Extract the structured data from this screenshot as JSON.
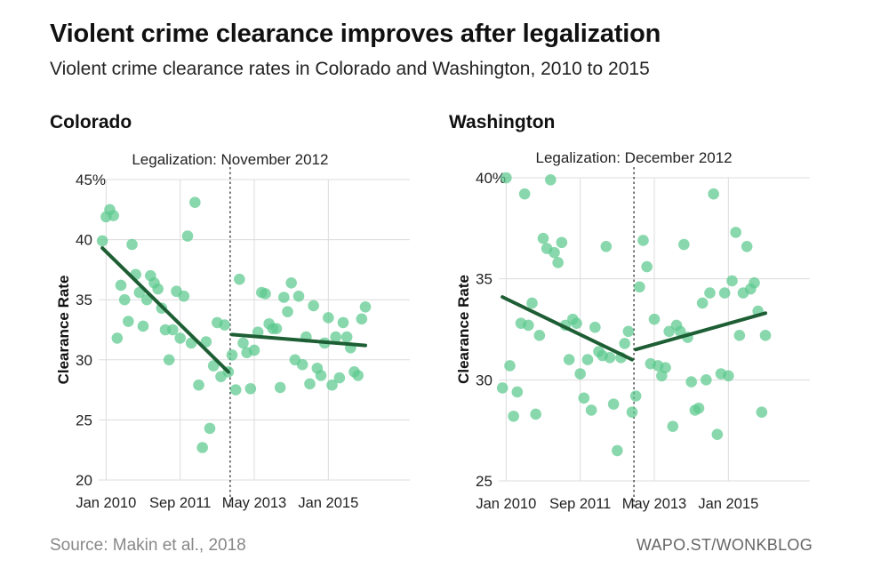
{
  "header": {
    "title": "Violent crime clearance improves after legalization",
    "subtitle": "Violent crime clearance rates in Colorado and Washington, 2010 to 2015"
  },
  "footer": {
    "source": "Source: Makin et al., 2018",
    "credit": "WAPO.ST/WONKBLOG"
  },
  "colors": {
    "dot": "#5cc98e",
    "trend": "#1e5e34",
    "grid": "#dcdcdc"
  },
  "chart_data": [
    {
      "type": "scatter",
      "title": "Colorado",
      "annotation": "Legalization: November 2012",
      "ylabel": "Clearance Rate",
      "xlabel": "",
      "ylim": [
        20,
        45
      ],
      "yticks": [
        20,
        25,
        30,
        35,
        40,
        45
      ],
      "ytick_labels": [
        "20",
        "25",
        "30",
        "35",
        "40",
        "45%"
      ],
      "xlim": [
        0,
        84
      ],
      "xticks": [
        {
          "x": 2,
          "label": "Jan 2010"
        },
        {
          "x": 22,
          "label": "Sep 2011"
        },
        {
          "x": 42,
          "label": "May 2013"
        },
        {
          "x": 62,
          "label": "Jan 2015"
        }
      ],
      "legalization_x": 35,
      "grid": true,
      "points": [
        {
          "x": 1,
          "y": 39.9
        },
        {
          "x": 2,
          "y": 41.9
        },
        {
          "x": 3,
          "y": 42.5
        },
        {
          "x": 4,
          "y": 42.0
        },
        {
          "x": 5,
          "y": 31.8
        },
        {
          "x": 6,
          "y": 36.2
        },
        {
          "x": 7,
          "y": 35.0
        },
        {
          "x": 8,
          "y": 33.2
        },
        {
          "x": 9,
          "y": 39.6
        },
        {
          "x": 10,
          "y": 37.1
        },
        {
          "x": 11,
          "y": 35.6
        },
        {
          "x": 12,
          "y": 32.8
        },
        {
          "x": 13,
          "y": 35.0
        },
        {
          "x": 14,
          "y": 37.0
        },
        {
          "x": 15,
          "y": 36.4
        },
        {
          "x": 16,
          "y": 35.9
        },
        {
          "x": 17,
          "y": 34.3
        },
        {
          "x": 18,
          "y": 32.5
        },
        {
          "x": 19,
          "y": 30.0
        },
        {
          "x": 20,
          "y": 32.5
        },
        {
          "x": 21,
          "y": 35.7
        },
        {
          "x": 22,
          "y": 31.8
        },
        {
          "x": 23,
          "y": 35.3
        },
        {
          "x": 24,
          "y": 40.3
        },
        {
          "x": 25,
          "y": 31.4
        },
        {
          "x": 26,
          "y": 43.1
        },
        {
          "x": 27,
          "y": 27.9
        },
        {
          "x": 28,
          "y": 22.7
        },
        {
          "x": 29,
          "y": 31.5
        },
        {
          "x": 30,
          "y": 24.3
        },
        {
          "x": 31,
          "y": 29.5
        },
        {
          "x": 32,
          "y": 33.1
        },
        {
          "x": 33,
          "y": 28.6
        },
        {
          "x": 34,
          "y": 32.9
        },
        {
          "x": 35,
          "y": 29.0
        },
        {
          "x": 36,
          "y": 30.4
        },
        {
          "x": 37,
          "y": 27.5
        },
        {
          "x": 38,
          "y": 36.7
        },
        {
          "x": 39,
          "y": 31.4
        },
        {
          "x": 40,
          "y": 30.6
        },
        {
          "x": 41,
          "y": 27.6
        },
        {
          "x": 42,
          "y": 30.8
        },
        {
          "x": 43,
          "y": 32.3
        },
        {
          "x": 44,
          "y": 35.6
        },
        {
          "x": 45,
          "y": 35.5
        },
        {
          "x": 46,
          "y": 33.0
        },
        {
          "x": 47,
          "y": 32.6
        },
        {
          "x": 48,
          "y": 32.6
        },
        {
          "x": 49,
          "y": 27.7
        },
        {
          "x": 50,
          "y": 35.2
        },
        {
          "x": 51,
          "y": 34.0
        },
        {
          "x": 52,
          "y": 36.4
        },
        {
          "x": 53,
          "y": 30.0
        },
        {
          "x": 54,
          "y": 35.3
        },
        {
          "x": 55,
          "y": 29.6
        },
        {
          "x": 56,
          "y": 31.9
        },
        {
          "x": 57,
          "y": 28.0
        },
        {
          "x": 58,
          "y": 34.5
        },
        {
          "x": 59,
          "y": 29.3
        },
        {
          "x": 60,
          "y": 28.7
        },
        {
          "x": 61,
          "y": 31.4
        },
        {
          "x": 62,
          "y": 33.5
        },
        {
          "x": 63,
          "y": 27.9
        },
        {
          "x": 64,
          "y": 31.9
        },
        {
          "x": 65,
          "y": 28.5
        },
        {
          "x": 66,
          "y": 33.1
        },
        {
          "x": 67,
          "y": 31.9
        },
        {
          "x": 68,
          "y": 31.0
        },
        {
          "x": 69,
          "y": 29.0
        },
        {
          "x": 70,
          "y": 28.7
        },
        {
          "x": 71,
          "y": 33.4
        },
        {
          "x": 72,
          "y": 34.4
        }
      ],
      "trend_lines": [
        {
          "x": [
            1,
            35
          ],
          "y": [
            39.3,
            29.0
          ]
        },
        {
          "x": [
            36,
            72
          ],
          "y": [
            32.1,
            31.2
          ]
        }
      ]
    },
    {
      "type": "scatter",
      "title": "Washington",
      "annotation": "Legalization: December 2012",
      "ylabel": "Clearance Rate",
      "xlabel": "",
      "ylim": [
        25,
        40
      ],
      "yticks": [
        25,
        30,
        35,
        40
      ],
      "ytick_labels": [
        "25",
        "30",
        "35",
        "40%"
      ],
      "xlim": [
        0,
        84
      ],
      "xticks": [
        {
          "x": 2,
          "label": "Jan 2010"
        },
        {
          "x": 22,
          "label": "Sep 2011"
        },
        {
          "x": 42,
          "label": "May 2013"
        },
        {
          "x": 62,
          "label": "Jan 2015"
        }
      ],
      "legalization_x": 36,
      "grid": true,
      "points": [
        {
          "x": 1,
          "y": 29.6
        },
        {
          "x": 2,
          "y": 40.0
        },
        {
          "x": 3,
          "y": 30.7
        },
        {
          "x": 4,
          "y": 28.2
        },
        {
          "x": 5,
          "y": 29.4
        },
        {
          "x": 6,
          "y": 32.8
        },
        {
          "x": 7,
          "y": 39.2
        },
        {
          "x": 8,
          "y": 32.7
        },
        {
          "x": 9,
          "y": 33.8
        },
        {
          "x": 10,
          "y": 28.3
        },
        {
          "x": 11,
          "y": 32.2
        },
        {
          "x": 12,
          "y": 37.0
        },
        {
          "x": 13,
          "y": 36.5
        },
        {
          "x": 14,
          "y": 39.9
        },
        {
          "x": 15,
          "y": 36.3
        },
        {
          "x": 16,
          "y": 35.8
        },
        {
          "x": 17,
          "y": 36.8
        },
        {
          "x": 18,
          "y": 32.7
        },
        {
          "x": 19,
          "y": 31.0
        },
        {
          "x": 20,
          "y": 33.0
        },
        {
          "x": 21,
          "y": 32.8
        },
        {
          "x": 22,
          "y": 30.3
        },
        {
          "x": 23,
          "y": 29.1
        },
        {
          "x": 24,
          "y": 31.0
        },
        {
          "x": 25,
          "y": 28.5
        },
        {
          "x": 26,
          "y": 32.6
        },
        {
          "x": 27,
          "y": 31.4
        },
        {
          "x": 28,
          "y": 31.2
        },
        {
          "x": 29,
          "y": 36.6
        },
        {
          "x": 30,
          "y": 31.1
        },
        {
          "x": 31,
          "y": 28.8
        },
        {
          "x": 32,
          "y": 26.5
        },
        {
          "x": 33,
          "y": 31.1
        },
        {
          "x": 34,
          "y": 31.8
        },
        {
          "x": 35,
          "y": 32.4
        },
        {
          "x": 36,
          "y": 28.4
        },
        {
          "x": 37,
          "y": 29.2
        },
        {
          "x": 38,
          "y": 34.6
        },
        {
          "x": 39,
          "y": 36.9
        },
        {
          "x": 40,
          "y": 35.6
        },
        {
          "x": 41,
          "y": 30.8
        },
        {
          "x": 42,
          "y": 33.0
        },
        {
          "x": 43,
          "y": 30.7
        },
        {
          "x": 44,
          "y": 30.2
        },
        {
          "x": 45,
          "y": 30.6
        },
        {
          "x": 46,
          "y": 32.4
        },
        {
          "x": 47,
          "y": 27.7
        },
        {
          "x": 48,
          "y": 32.7
        },
        {
          "x": 49,
          "y": 32.4
        },
        {
          "x": 50,
          "y": 36.7
        },
        {
          "x": 51,
          "y": 32.1
        },
        {
          "x": 52,
          "y": 29.9
        },
        {
          "x": 53,
          "y": 28.5
        },
        {
          "x": 54,
          "y": 28.6
        },
        {
          "x": 55,
          "y": 33.8
        },
        {
          "x": 56,
          "y": 30.0
        },
        {
          "x": 57,
          "y": 34.3
        },
        {
          "x": 58,
          "y": 39.2
        },
        {
          "x": 59,
          "y": 27.3
        },
        {
          "x": 60,
          "y": 30.3
        },
        {
          "x": 61,
          "y": 34.3
        },
        {
          "x": 62,
          "y": 30.2
        },
        {
          "x": 63,
          "y": 34.9
        },
        {
          "x": 64,
          "y": 37.3
        },
        {
          "x": 65,
          "y": 32.2
        },
        {
          "x": 66,
          "y": 34.3
        },
        {
          "x": 67,
          "y": 36.6
        },
        {
          "x": 68,
          "y": 34.5
        },
        {
          "x": 69,
          "y": 34.8
        },
        {
          "x": 70,
          "y": 33.4
        },
        {
          "x": 71,
          "y": 28.4
        },
        {
          "x": 72,
          "y": 32.2
        }
      ],
      "trend_lines": [
        {
          "x": [
            1,
            36
          ],
          "y": [
            34.1,
            31.0
          ]
        },
        {
          "x": [
            37,
            72
          ],
          "y": [
            31.5,
            33.3
          ]
        }
      ]
    }
  ]
}
